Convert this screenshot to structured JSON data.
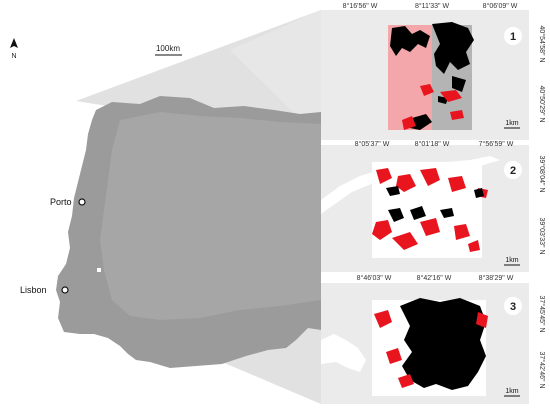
{
  "north_label": "N",
  "scale_label": "100km",
  "cities": [
    {
      "name": "Porto"
    },
    {
      "name": "Lisbon"
    }
  ],
  "panels": [
    {
      "number": "1",
      "top_coords": [
        "8°16'56\" W",
        "8°11'33\" W",
        "8°06'09\" W"
      ],
      "right_coords": [
        "40°54'58\" N",
        "40°50'29\" N"
      ],
      "scale": "1km"
    },
    {
      "number": "2",
      "top_coords": [
        "8°05'37\" W",
        "8°01'18\" W",
        "7°56'59\" W"
      ],
      "right_coords": [
        "39°08'04\" N",
        "39°03'33\" N"
      ],
      "scale": "1km"
    },
    {
      "number": "3",
      "top_coords": [
        "8°46'03\" W",
        "8°42'16\" W",
        "8°38'29\" W"
      ],
      "right_coords": [
        "37°45'45\" N",
        "37°42'46\" N"
      ],
      "scale": "1km"
    }
  ],
  "colors": {
    "land": "#9b9b9b",
    "panel_bg": "#ebebeb",
    "panel_land": "#d8d8d8",
    "burned_red": "#e8141e",
    "burned_black": "#000000",
    "study_area": "#ffffff",
    "wedge": "#bdbdbd"
  }
}
